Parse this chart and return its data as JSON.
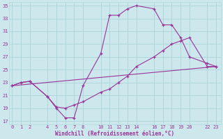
{
  "xlabel": "Windchill (Refroidissement éolien,°C)",
  "bg_color": "#cce8ec",
  "line_color": "#993399",
  "marker_color": "#993399",
  "grid_color": "#b0d8dc",
  "axis_label_color": "#993399",
  "tick_label_color": "#993399",
  "x_ticks": [
    0,
    1,
    2,
    4,
    5,
    6,
    7,
    8,
    10,
    11,
    12,
    13,
    14,
    16,
    17,
    18,
    19,
    20,
    22,
    23
  ],
  "y_ticks": [
    17,
    19,
    21,
    23,
    25,
    27,
    29,
    31,
    33,
    35
  ],
  "xlim": [
    -0.3,
    23.5
  ],
  "ylim": [
    16.5,
    35.5
  ],
  "series1_x": [
    0,
    1,
    2,
    4,
    5,
    6,
    7,
    8,
    10,
    11,
    12,
    13,
    14,
    16,
    17,
    18,
    19,
    20,
    22,
    23
  ],
  "series1_y": [
    22.5,
    23.0,
    23.2,
    20.8,
    19.0,
    17.5,
    17.5,
    22.5,
    27.5,
    33.5,
    33.5,
    34.5,
    35.0,
    34.5,
    32.0,
    32.0,
    30.0,
    27.0,
    26.0,
    25.5
  ],
  "series2_x": [
    0,
    1,
    2,
    4,
    5,
    6,
    7,
    8,
    10,
    11,
    12,
    13,
    14,
    16,
    17,
    18,
    19,
    20,
    22,
    23
  ],
  "series2_y": [
    22.5,
    23.0,
    23.2,
    20.8,
    19.2,
    19.0,
    19.5,
    20.0,
    21.5,
    22.0,
    23.0,
    24.0,
    25.5,
    27.0,
    28.0,
    29.0,
    29.5,
    30.0,
    25.5,
    25.5
  ],
  "series3_x": [
    0,
    23
  ],
  "series3_y": [
    22.5,
    25.5
  ]
}
